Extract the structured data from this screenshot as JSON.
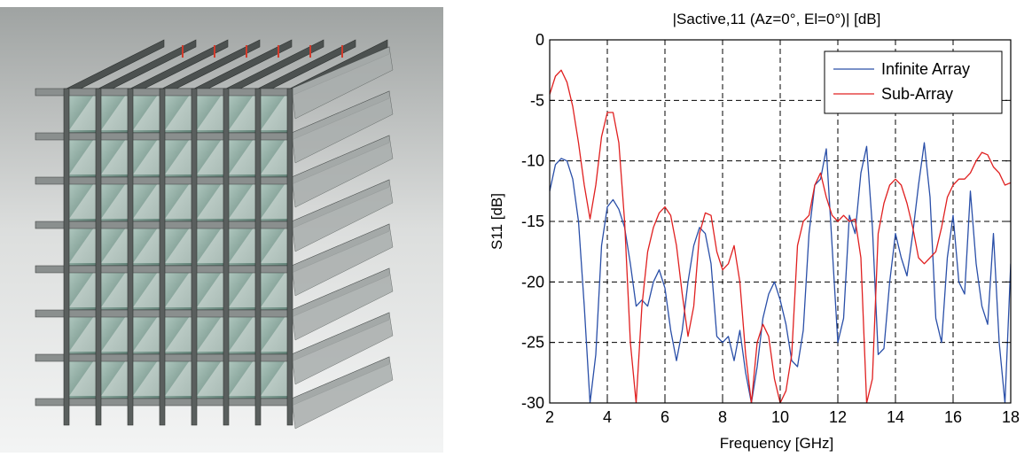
{
  "chart_data": {
    "type": "line",
    "title": "|Sactive,11 (Az=0°, El=0°)|  [dB]",
    "xlabel": "Frequency [GHz]",
    "ylabel": "S11 [dB]",
    "xlim": [
      2,
      18
    ],
    "ylim": [
      -30,
      0
    ],
    "xticks": [
      "2",
      "4",
      "6",
      "8",
      "10",
      "12",
      "14",
      "16",
      "18"
    ],
    "yticks": [
      "0",
      "-5",
      "-10",
      "-15",
      "-20",
      "-25",
      "-30"
    ],
    "grid": true,
    "legend_position": "top-right",
    "series": [
      {
        "name": "Infinite Array",
        "color": "#2a4fa8",
        "x": [
          2.0,
          2.2,
          2.4,
          2.6,
          2.8,
          3.0,
          3.2,
          3.4,
          3.6,
          3.8,
          4.0,
          4.2,
          4.4,
          4.6,
          4.8,
          5.0,
          5.2,
          5.4,
          5.6,
          5.8,
          6.0,
          6.2,
          6.4,
          6.6,
          6.8,
          7.0,
          7.2,
          7.4,
          7.6,
          7.8,
          8.0,
          8.2,
          8.4,
          8.6,
          8.8,
          9.0,
          9.2,
          9.4,
          9.6,
          9.8,
          10.0,
          10.2,
          10.4,
          10.6,
          10.8,
          11.0,
          11.2,
          11.4,
          11.6,
          11.8,
          12.0,
          12.2,
          12.4,
          12.6,
          12.8,
          13.0,
          13.2,
          13.4,
          13.6,
          13.8,
          14.0,
          14.2,
          14.4,
          14.6,
          14.8,
          15.0,
          15.2,
          15.4,
          15.6,
          15.8,
          16.0,
          16.2,
          16.4,
          16.6,
          16.8,
          17.0,
          17.2,
          17.4,
          17.6,
          17.8,
          18.0
        ],
        "y": [
          -12.5,
          -10.3,
          -9.8,
          -10.0,
          -11.5,
          -15.0,
          -22.0,
          -30.0,
          -26.0,
          -17.0,
          -13.8,
          -13.2,
          -14.0,
          -15.5,
          -18.5,
          -22.0,
          -21.5,
          -22.0,
          -20.0,
          -19.0,
          -20.5,
          -24.0,
          -26.5,
          -24.0,
          -20.0,
          -17.0,
          -15.5,
          -16.0,
          -18.5,
          -24.5,
          -25.0,
          -24.5,
          -26.5,
          -24.0,
          -27.5,
          -30.0,
          -27.0,
          -23.0,
          -21.0,
          -20.0,
          -21.5,
          -23.5,
          -26.5,
          -27.0,
          -24.0,
          -16.0,
          -12.0,
          -11.5,
          -9.0,
          -17.0,
          -25.0,
          -23.0,
          -14.5,
          -16.0,
          -11.0,
          -8.8,
          -15.5,
          -26.0,
          -25.5,
          -20.0,
          -16.0,
          -18.0,
          -19.5,
          -16.0,
          -12.0,
          -8.5,
          -13.0,
          -23.0,
          -25.0,
          -18.0,
          -14.5,
          -20.0,
          -21.0,
          -12.5,
          -18.5,
          -22.0,
          -23.5,
          -16.0,
          -25.0,
          -30.0,
          -18.5
        ]
      },
      {
        "name": "Sub-Array",
        "color": "#e02020",
        "x": [
          2.0,
          2.2,
          2.4,
          2.6,
          2.8,
          3.0,
          3.2,
          3.4,
          3.6,
          3.8,
          4.0,
          4.2,
          4.4,
          4.6,
          4.8,
          5.0,
          5.2,
          5.4,
          5.6,
          5.8,
          6.0,
          6.2,
          6.4,
          6.6,
          6.8,
          7.0,
          7.2,
          7.4,
          7.6,
          7.8,
          8.0,
          8.2,
          8.4,
          8.6,
          8.8,
          9.0,
          9.2,
          9.4,
          9.6,
          9.8,
          10.0,
          10.2,
          10.4,
          10.6,
          10.8,
          11.0,
          11.2,
          11.4,
          11.6,
          11.8,
          12.0,
          12.2,
          12.4,
          12.6,
          12.8,
          13.0,
          13.2,
          13.4,
          13.6,
          13.8,
          14.0,
          14.2,
          14.4,
          14.6,
          14.8,
          15.0,
          15.2,
          15.4,
          15.6,
          15.8,
          16.0,
          16.2,
          16.4,
          16.6,
          16.8,
          17.0,
          17.2,
          17.4,
          17.6,
          17.8,
          18.0
        ],
        "y": [
          -4.5,
          -3.0,
          -2.5,
          -3.5,
          -5.5,
          -8.5,
          -12.0,
          -14.8,
          -12.0,
          -8.0,
          -6.0,
          -6.0,
          -8.5,
          -15.0,
          -25.0,
          -30.0,
          -22.0,
          -17.5,
          -15.5,
          -14.3,
          -13.8,
          -14.5,
          -17.0,
          -21.0,
          -24.5,
          -22.0,
          -16.0,
          -14.3,
          -14.5,
          -17.5,
          -19.0,
          -18.5,
          -17.0,
          -20.0,
          -26.0,
          -30.0,
          -25.0,
          -23.5,
          -24.5,
          -28.0,
          -30.0,
          -29.0,
          -26.0,
          -17.0,
          -15.0,
          -14.5,
          -12.0,
          -11.0,
          -13.0,
          -14.5,
          -15.0,
          -14.5,
          -15.0,
          -14.8,
          -18.0,
          -30.0,
          -28.0,
          -16.0,
          -13.5,
          -12.0,
          -11.5,
          -12.0,
          -13.5,
          -15.5,
          -18.0,
          -18.5,
          -18.0,
          -17.5,
          -15.5,
          -13.0,
          -12.0,
          -11.5,
          -11.5,
          -11.0,
          -10.0,
          -9.3,
          -9.5,
          -10.5,
          -11.0,
          -12.0,
          -11.8
        ]
      }
    ]
  }
}
